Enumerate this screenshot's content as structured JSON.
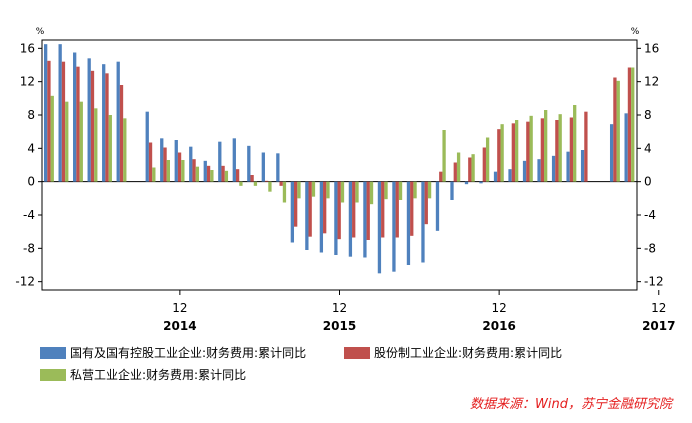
{
  "chart_data": {
    "type": "bar",
    "unit_left": "%",
    "unit_right": "%",
    "ylim": [
      -13,
      17
    ],
    "yticks": [
      -12,
      -8,
      -4,
      0,
      4,
      8,
      12,
      16
    ],
    "x_tick_labels": [
      {
        "month": "12",
        "year": "2014",
        "after_index": 9
      },
      {
        "month": "12",
        "year": "2015",
        "after_index": 20
      },
      {
        "month": "12",
        "year": "2016",
        "after_index": 31
      },
      {
        "month": "12",
        "year": "2017",
        "after_index": 42
      }
    ],
    "series": [
      {
        "name": "国有及国有控股工业企业:财务费用:累计同比",
        "color": "#4f81bd",
        "values": [
          16.5,
          16.5,
          15.5,
          14.8,
          14.1,
          14.4,
          null,
          8.4,
          5.2,
          5.0,
          4.2,
          2.5,
          4.8,
          5.2,
          4.3,
          3.5,
          3.4,
          -7.3,
          -8.2,
          -8.5,
          -8.8,
          -9.0,
          -9.1,
          -11.0,
          -10.8,
          -10.0,
          -9.7,
          -5.9,
          -2.2,
          -0.3,
          -0.2,
          1.2,
          1.5,
          2.5,
          2.7,
          3.1,
          3.6,
          3.8,
          null,
          6.9,
          8.2
        ]
      },
      {
        "name": "股份制工业企业:财务费用:累计同比",
        "color": "#c0504d",
        "values": [
          14.5,
          14.4,
          13.8,
          13.3,
          13.0,
          11.6,
          null,
          4.7,
          4.1,
          3.5,
          2.7,
          1.9,
          1.9,
          1.5,
          0.8,
          0.1,
          -0.5,
          -5.4,
          -6.6,
          -6.2,
          -6.9,
          -6.7,
          -7.0,
          -6.7,
          -6.7,
          -6.5,
          -5.1,
          1.2,
          2.3,
          2.9,
          4.1,
          6.3,
          7.0,
          7.2,
          7.6,
          7.4,
          7.7,
          8.4,
          null,
          12.5,
          13.7
        ]
      },
      {
        "name": "私营工业企业:财务费用:累计同比",
        "color": "#9bbb59",
        "values": [
          10.3,
          9.6,
          9.6,
          8.8,
          8.0,
          7.6,
          null,
          1.7,
          2.6,
          2.6,
          1.8,
          1.4,
          1.3,
          -0.5,
          -0.5,
          -1.2,
          -2.5,
          -2.0,
          -1.8,
          -2.0,
          -2.5,
          -2.5,
          -2.7,
          -2.1,
          -2.2,
          -2.0,
          -2.0,
          6.2,
          3.5,
          3.3,
          5.3,
          6.9,
          7.4,
          7.9,
          8.6,
          8.1,
          9.2,
          null,
          null,
          12.1,
          13.7
        ]
      }
    ]
  },
  "legend": [
    {
      "label": "国有及国有控股工业企业:财务费用:累计同比",
      "color": "#4f81bd"
    },
    {
      "label": "股份制工业企业:财务费用:累计同比",
      "color": "#c0504d"
    },
    {
      "label": "私营工业企业:财务费用:累计同比",
      "color": "#9bbb59"
    }
  ],
  "source": "数据来源：Wind，苏宁金融研究院"
}
